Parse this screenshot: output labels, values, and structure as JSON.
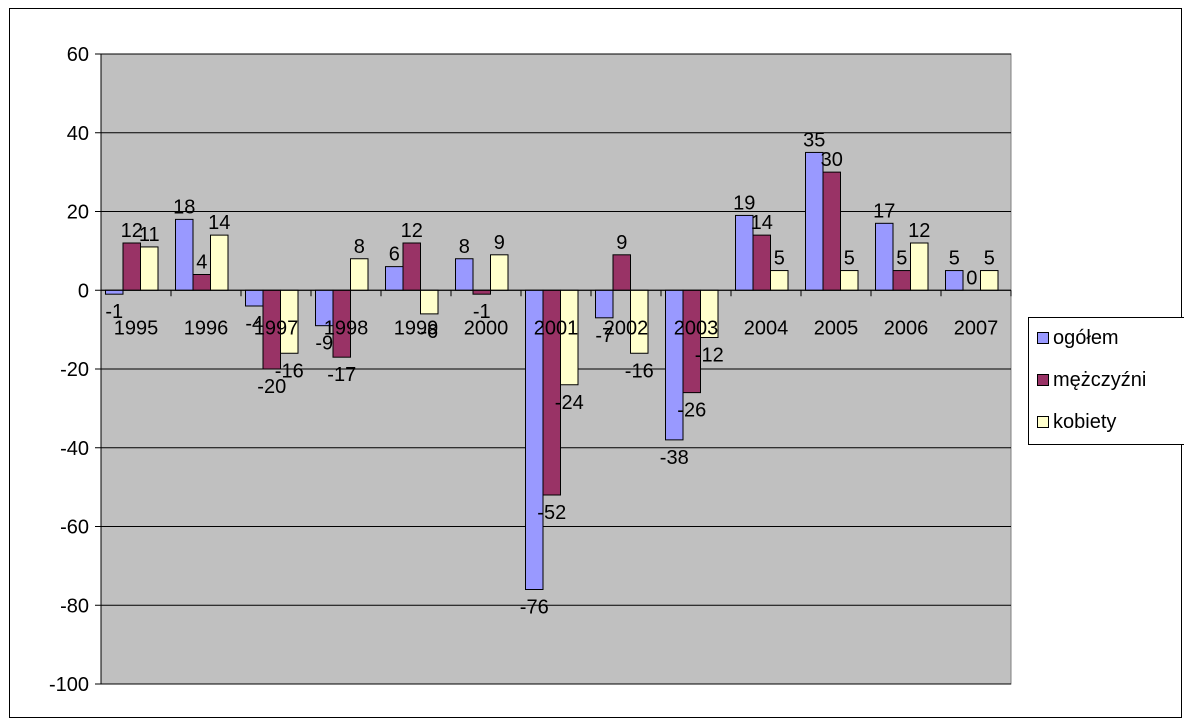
{
  "chart_data": {
    "type": "bar",
    "title": "",
    "xlabel": "",
    "ylabel": "",
    "categories": [
      "1995",
      "1996",
      "1997",
      "1998",
      "1999",
      "2000",
      "2001",
      "2002",
      "2003",
      "2004",
      "2005",
      "2006",
      "2007"
    ],
    "series": [
      {
        "name": "ogółem",
        "color": "#9999FF",
        "values": [
          -1,
          18,
          -4,
          -9,
          6,
          8,
          -76,
          -7,
          -38,
          19,
          35,
          17,
          5
        ]
      },
      {
        "name": "mężczyźni",
        "color": "#993366",
        "values": [
          12,
          4,
          -20,
          -17,
          12,
          -1,
          -52,
          9,
          -26,
          14,
          30,
          5,
          0
        ]
      },
      {
        "name": "kobiety",
        "color": "#FFFFCC",
        "values": [
          11,
          14,
          -16,
          8,
          -6,
          9,
          -24,
          -16,
          -12,
          5,
          5,
          12,
          5
        ]
      }
    ],
    "value_labels": [
      [
        "-1",
        "18",
        "-4",
        "-9",
        "6",
        "8",
        "-76",
        "-7",
        "-38",
        "19",
        "35",
        "17",
        "5"
      ],
      [
        "12",
        "4",
        "-20",
        "-17",
        "12",
        "-1",
        "-52",
        "9",
        "-26",
        "14",
        "30",
        "5",
        "0"
      ],
      [
        "11",
        "14",
        "-16",
        "8",
        "-6",
        "9",
        "-24",
        "-16",
        "-12",
        "5",
        "5",
        "12",
        "5"
      ]
    ],
    "ylim": [
      -100,
      60
    ],
    "yticks": [
      "60",
      "40",
      "20",
      "0",
      "-20",
      "-40",
      "-60",
      "-80",
      "-100"
    ],
    "ytick_values": [
      60,
      40,
      20,
      0,
      -20,
      -40,
      -60,
      -80,
      -100
    ],
    "grid": true,
    "plot_background": "#C0C0C0",
    "legend_position": "right"
  }
}
